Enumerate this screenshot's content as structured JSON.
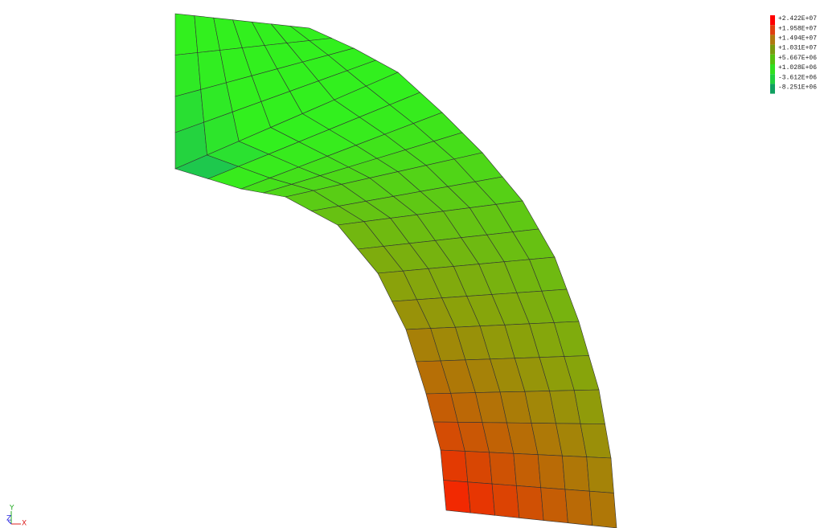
{
  "legend": {
    "entries": [
      {
        "label": "+2.422E+07",
        "color": "#ff0000"
      },
      {
        "label": "+1.958E+07",
        "color": "#e04010"
      },
      {
        "label": "+1.494E+07",
        "color": "#b07a10"
      },
      {
        "label": "+1.031E+07",
        "color": "#7a9a10"
      },
      {
        "label": "+5.667E+06",
        "color": "#55c010"
      },
      {
        "label": "+1.028E+06",
        "color": "#30e020"
      },
      {
        "label": "-3.612E+06",
        "color": "#20d040"
      },
      {
        "label": "-8.251E+06",
        "color": "#10a060"
      }
    ]
  },
  "triad": {
    "y": "Y",
    "z": "Z",
    "x": "X"
  }
}
